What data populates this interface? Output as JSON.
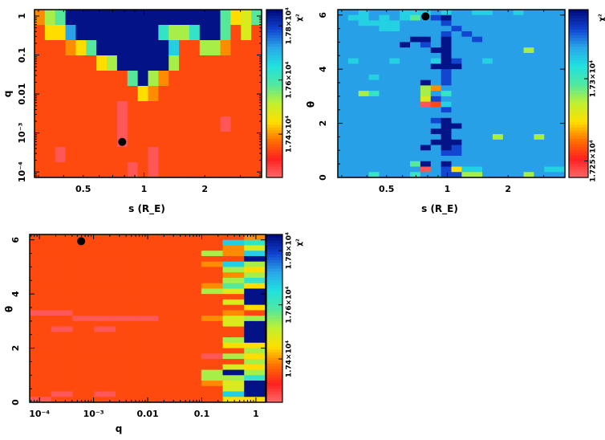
{
  "colormap": [
    "#ff6b6b",
    "#ff2020",
    "#ff7000",
    "#ffe000",
    "#c0f030",
    "#50e8a0",
    "#20e0e0",
    "#2aa6e8",
    "#1040d0",
    "#000a78"
  ],
  "chart_data": [
    {
      "type": "heatmap",
      "id": "s-q",
      "xlabel": "s (R_E)",
      "ylabel": "q",
      "zlabel": "χ²",
      "xscale": "log",
      "yscale": "log",
      "xlim": [
        0.287,
        3.82
      ],
      "ylim": [
        7.24e-05,
        1.46
      ],
      "xticks": [
        {
          "v": 0.5,
          "label": "0.5"
        },
        {
          "v": 1,
          "label": "1"
        },
        {
          "v": 2,
          "label": "2"
        }
      ],
      "yticks": [
        {
          "v": 1,
          "label": "1"
        },
        {
          "v": 0.1,
          "label": "0.1"
        },
        {
          "v": 0.01,
          "label": "0.01"
        },
        {
          "v": 0.001,
          "label": "10⁻³"
        },
        {
          "v": 0.0001,
          "label": "10⁻⁴"
        }
      ],
      "zlim": [
        17240,
        17860
      ],
      "zticks": [
        {
          "v": 17400,
          "label": "1.74×10⁴"
        },
        {
          "v": 17600,
          "label": "1.76×10⁴"
        },
        {
          "v": 17800,
          "label": "1.78×10⁴"
        }
      ],
      "levels": {
        "0": 17258,
        "1": 17345,
        "2": 17395,
        "3": 17445,
        "4": 17488,
        "5": 17531,
        "6": 17581,
        "7": 17624,
        "8": 17674,
        "9": 17724,
        "B": 17786,
        "N": 17848
      },
      "grid_rows_top_to_bottom": [
        "256NNNNNNNNNNNNNNN6346",
        "1339NNNNNNNN7557NN6141",
        "111236NNNNNNN811552111",
        "11111135NNNNN511111111",
        "1111111116N52111111111",
        "1111111111321111111111",
        "1111111101111111111111",
        "1111111101111111110111",
        "1111111101111111111111",
        "1101111111101111111111",
        "1111111110101111111111"
      ],
      "best_fit": {
        "x": 0.78,
        "y": 0.00059
      }
    },
    {
      "type": "heatmap",
      "id": "s-theta",
      "xlabel": "s (R_E)",
      "ylabel": "θ",
      "zlabel": "χ²",
      "xscale": "log",
      "yscale": "linear",
      "xlim": [
        0.287,
        3.82
      ],
      "ylim": [
        0,
        6.2
      ],
      "xticks": [
        {
          "v": 0.5,
          "label": "0.5"
        },
        {
          "v": 1,
          "label": "1"
        },
        {
          "v": 2,
          "label": "2"
        }
      ],
      "yticks": [
        {
          "v": 0,
          "label": "0"
        },
        {
          "v": 2,
          "label": "2"
        },
        {
          "v": 4,
          "label": "4"
        },
        {
          "v": 6,
          "label": "6"
        }
      ],
      "zlim": [
        17240,
        17342
      ],
      "zticks": [
        {
          "v": 17250,
          "label": "1.725×10⁴"
        },
        {
          "v": 17300,
          "label": "1.73×10⁴"
        }
      ],
      "levels": {
        "0": 17243,
        "1": 17257,
        "2": 17266,
        "3": 17274,
        "4": 17281,
        "5": 17288,
        "6": 17296,
        "7": 17303,
        "8": 17311,
        "9": 17320,
        "B": 17330,
        "N": 17340
      },
      "grid_rows_top_to_bottom": [
        "9989998889899889989999",
        "988989869BN99999999999",
        "9988889999B99999999999",
        "99998899999B9999999999",
        "9999999999B9B999999999",
        "9999999NN9N99B99999999",
        "999999N9B9N99999999999",
        "999999999NN99999995999",
        "9999999999N99999999999",
        "9899989998NB9989999999",
        "999999999NNN9999999999",
        "9999999999B99999999999",
        "9998999999B99999999999",
        "99999999N9B99999999999",
        "9999999952999999999999",
        "9957999959799999999999",
        "999999994B999999999999",
        "9999999901899999999999",
        "9999999999B99999999999",
        "9999999999999999999999",
        "999999999BN99999999999",
        "9999999999NN9999999999",
        "999999999NN99999999999",
        "9999999999N99995999599",
        "999999999NNN9999999999",
        "99999999N9NB9999999999",
        "9999999999BB9999999999",
        "9999999999999999999999",
        "99999996N9N99999999999",
        "9999999909B38899999988",
        "9997999799BB5599995999"
      ],
      "best_fit": {
        "x": 0.78,
        "y": 5.95
      }
    },
    {
      "type": "heatmap",
      "id": "q-theta",
      "xlabel": "q",
      "ylabel": "θ",
      "zlabel": "χ²",
      "xscale": "log",
      "yscale": "linear",
      "xlim": [
        6.6e-05,
        1.51
      ],
      "ylim": [
        0,
        6.2
      ],
      "xticks": [
        {
          "v": 0.0001,
          "label": "10⁻⁴"
        },
        {
          "v": 0.001,
          "label": "10⁻³"
        },
        {
          "v": 0.01,
          "label": "0.01"
        },
        {
          "v": 0.1,
          "label": "0.1"
        },
        {
          "v": 1,
          "label": "1"
        }
      ],
      "yticks": [
        {
          "v": 0,
          "label": "0"
        },
        {
          "v": 2,
          "label": "2"
        },
        {
          "v": 4,
          "label": "4"
        },
        {
          "v": 6,
          "label": "6"
        }
      ],
      "zlim": [
        17240,
        17860
      ],
      "zticks": [
        {
          "v": 17400,
          "label": "1.74×10⁴"
        },
        {
          "v": 17600,
          "label": "1.76×10⁴"
        },
        {
          "v": 17800,
          "label": "1.78×10⁴"
        }
      ],
      "levels": {
        "0": 17258,
        "1": 17345,
        "2": 17395,
        "3": 17445,
        "4": 17488,
        "5": 17531,
        "6": 17581,
        "7": 17624,
        "8": 17674,
        "9": 17724,
        "B": 17786,
        "N": 17848
      },
      "grid_rows_top_to_bottom": [
        "11111111112",
        "11111111187",
        "11111111124",
        "11111111528",
        "1111111111N",
        "11111111285",
        "11111111153",
        "11111111125",
        "11111111157",
        "11111111263",
        "1111111154N",
        "1111111111N",
        "1111111114N",
        "11111111113",
        "00111111121",
        "11000011245",
        "1111111114N",
        "1010111111N",
        "1111111111N",
        "1111111115N",
        "11111111133",
        "11111111115",
        "11111111053",
        "11111111115",
        "11111111143",
        "111111115N5",
        "11111111557",
        "1111111124N",
        "1111111114N",
        "1010111118N",
        "01111111133"
      ],
      "best_fit": {
        "x": 0.00059,
        "y": 5.95
      }
    }
  ]
}
